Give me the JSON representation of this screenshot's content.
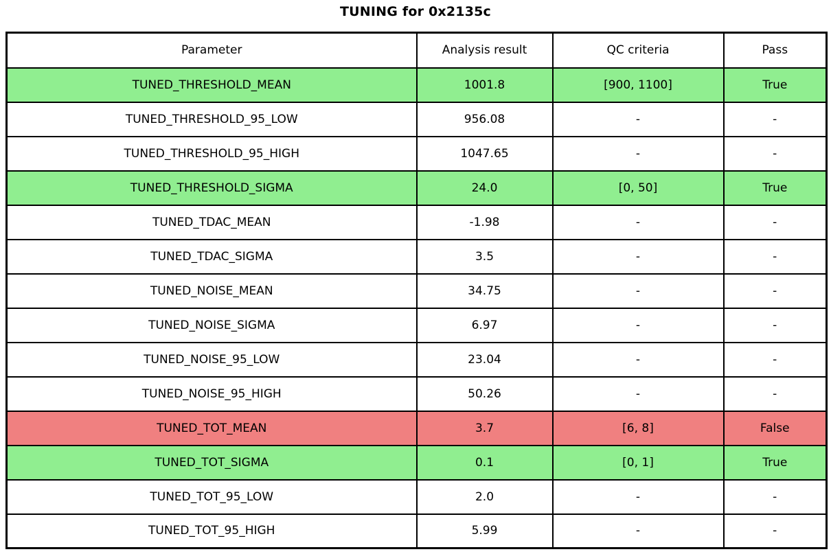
{
  "title": "TUNING for 0x2135c",
  "colors": {
    "background": "#FFFFFF",
    "border": "#000000",
    "text": "#000000",
    "pass_row": "#90EE90",
    "fail_row": "#F08080"
  },
  "chart_data": {
    "type": "table",
    "title": "TUNING for 0x2135c",
    "columns": [
      "Parameter",
      "Analysis result",
      "QC criteria",
      "Pass"
    ],
    "rows": [
      {
        "parameter": "TUNED_THRESHOLD_MEAN",
        "analysis_result": "1001.8",
        "qc_criteria": "[900, 1100]",
        "pass": "True",
        "status": "pass"
      },
      {
        "parameter": "TUNED_THRESHOLD_95_LOW",
        "analysis_result": "956.08",
        "qc_criteria": "-",
        "pass": "-",
        "status": "none"
      },
      {
        "parameter": "TUNED_THRESHOLD_95_HIGH",
        "analysis_result": "1047.65",
        "qc_criteria": "-",
        "pass": "-",
        "status": "none"
      },
      {
        "parameter": "TUNED_THRESHOLD_SIGMA",
        "analysis_result": "24.0",
        "qc_criteria": "[0, 50]",
        "pass": "True",
        "status": "pass"
      },
      {
        "parameter": "TUNED_TDAC_MEAN",
        "analysis_result": "-1.98",
        "qc_criteria": "-",
        "pass": "-",
        "status": "none"
      },
      {
        "parameter": "TUNED_TDAC_SIGMA",
        "analysis_result": "3.5",
        "qc_criteria": "-",
        "pass": "-",
        "status": "none"
      },
      {
        "parameter": "TUNED_NOISE_MEAN",
        "analysis_result": "34.75",
        "qc_criteria": "-",
        "pass": "-",
        "status": "none"
      },
      {
        "parameter": "TUNED_NOISE_SIGMA",
        "analysis_result": "6.97",
        "qc_criteria": "-",
        "pass": "-",
        "status": "none"
      },
      {
        "parameter": "TUNED_NOISE_95_LOW",
        "analysis_result": "23.04",
        "qc_criteria": "-",
        "pass": "-",
        "status": "none"
      },
      {
        "parameter": "TUNED_NOISE_95_HIGH",
        "analysis_result": "50.26",
        "qc_criteria": "-",
        "pass": "-",
        "status": "none"
      },
      {
        "parameter": "TUNED_TOT_MEAN",
        "analysis_result": "3.7",
        "qc_criteria": "[6, 8]",
        "pass": "False",
        "status": "fail"
      },
      {
        "parameter": "TUNED_TOT_SIGMA",
        "analysis_result": "0.1",
        "qc_criteria": "[0, 1]",
        "pass": "True",
        "status": "pass"
      },
      {
        "parameter": "TUNED_TOT_95_LOW",
        "analysis_result": "2.0",
        "qc_criteria": "-",
        "pass": "-",
        "status": "none"
      },
      {
        "parameter": "TUNED_TOT_95_HIGH",
        "analysis_result": "5.99",
        "qc_criteria": "-",
        "pass": "-",
        "status": "none"
      }
    ]
  }
}
